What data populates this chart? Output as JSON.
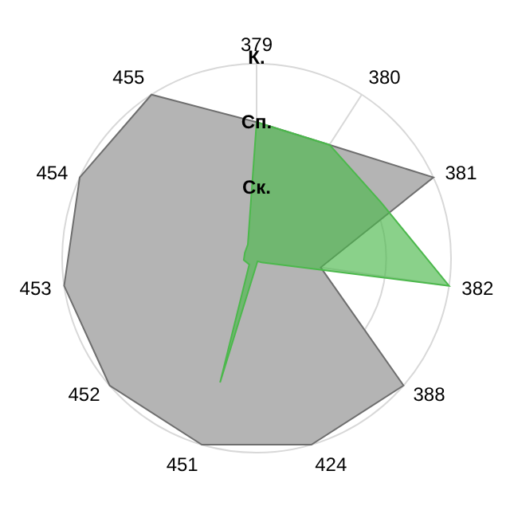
{
  "chart_data": {
    "type": "radar",
    "categories": [
      "379",
      "380",
      "381",
      "382",
      "388",
      "424",
      "451",
      "452",
      "453",
      "454",
      "455"
    ],
    "series": [
      {
        "color": "#b4b4b4",
        "values": [
          2.1,
          2.08,
          3,
          1,
          3,
          3,
          3,
          3,
          3,
          3,
          3
        ]
      },
      {
        "color": "#4cb84c",
        "values": [
          2.1,
          2.08,
          2.1,
          3,
          0.1,
          0.05,
          2,
          0.15,
          0.2,
          0.2,
          0.25
        ]
      }
    ],
    "ylim": [
      0,
      3
    ],
    "yticks": [
      {
        "value": 1,
        "label": "Ск."
      },
      {
        "value": 2,
        "label": "Сп."
      },
      {
        "value": 3,
        "label": "К."
      }
    ],
    "grid": true,
    "legend": false
  }
}
